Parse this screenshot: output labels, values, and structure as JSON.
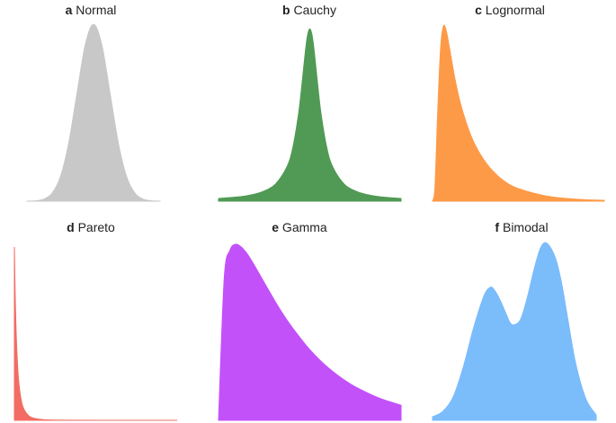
{
  "chart_data": [
    {
      "type": "area",
      "letter": "a",
      "title": "Normal",
      "color": "#c8c8c8",
      "x": [
        -4.0,
        -3.5,
        -3.0,
        -2.5,
        -2.0,
        -1.5,
        -1.0,
        -0.5,
        0.0,
        0.5,
        1.0,
        1.5,
        2.0,
        2.5,
        3.0,
        3.5,
        4.0
      ],
      "y": [
        0.0001,
        0.0009,
        0.0044,
        0.0175,
        0.054,
        0.1295,
        0.242,
        0.3521,
        0.3989,
        0.3521,
        0.242,
        0.1295,
        0.054,
        0.0175,
        0.0044,
        0.0009,
        0.0001
      ],
      "grid": false
    },
    {
      "type": "area",
      "letter": "b",
      "title": "Cauchy",
      "color": "#519a55",
      "x": [
        -8,
        -6,
        -5,
        -4,
        -3,
        -2,
        -1.5,
        -1,
        -0.7,
        -0.4,
        -0.2,
        0,
        0.2,
        0.4,
        0.7,
        1,
        1.5,
        2,
        3,
        4,
        5,
        6,
        8
      ],
      "y": [
        0.0049,
        0.0086,
        0.0122,
        0.0187,
        0.0318,
        0.0637,
        0.0979,
        0.1592,
        0.2136,
        0.2744,
        0.3061,
        0.3183,
        0.3061,
        0.2744,
        0.2136,
        0.1592,
        0.0979,
        0.0637,
        0.0318,
        0.0187,
        0.0122,
        0.0086,
        0.0049
      ],
      "grid": false
    },
    {
      "type": "area",
      "letter": "c",
      "title": "Lognormal",
      "color": "#fd9a48",
      "x": [
        0.02,
        0.1,
        0.2,
        0.3,
        0.4,
        0.5,
        0.6,
        0.8,
        1.0,
        1.3,
        1.6,
        2.0,
        2.5,
        3.0,
        4.0,
        5.0,
        6.0
      ],
      "y": [
        0.0,
        0.07,
        0.53,
        0.9,
        1.03,
        1.0,
        0.91,
        0.72,
        0.57,
        0.41,
        0.3,
        0.2,
        0.12,
        0.075,
        0.03,
        0.012,
        0.005
      ],
      "grid": false
    },
    {
      "type": "area",
      "letter": "d",
      "title": "Pareto",
      "color": "#f36c63",
      "x": [
        1.0,
        1.05,
        1.1,
        1.2,
        1.35,
        1.5,
        1.75,
        2.0,
        2.5,
        3.0,
        4.0,
        5.0,
        7.0,
        10.0,
        14.0,
        18.0
      ],
      "y": [
        3.0,
        2.47,
        2.05,
        1.45,
        0.9,
        0.59,
        0.32,
        0.19,
        0.077,
        0.037,
        0.012,
        0.0048,
        0.0012,
        0.0003,
        0.0001,
        0.0
      ],
      "grid": false
    },
    {
      "type": "area",
      "letter": "e",
      "title": "Gamma",
      "color": "#c351fa",
      "x": [
        0.0,
        0.25,
        0.5,
        0.75,
        1.0,
        1.25,
        1.5,
        2.0,
        2.5,
        3.0,
        3.5,
        4.0,
        4.5,
        5.0,
        5.5,
        6.0,
        7.0,
        8.0
      ],
      "y": [
        0.0,
        0.302,
        0.361,
        0.374,
        0.368,
        0.354,
        0.335,
        0.293,
        0.251,
        0.213,
        0.18,
        0.15,
        0.125,
        0.104,
        0.086,
        0.071,
        0.048,
        0.032
      ],
      "grid": false
    },
    {
      "type": "area",
      "letter": "f",
      "title": "Bimodal",
      "color": "#7bbcfb",
      "x": [
        -4,
        -3.5,
        -3,
        -2.5,
        -2,
        -1.5,
        -1.2,
        -1,
        -0.7,
        -0.4,
        -0.2,
        0,
        0.3,
        0.6,
        1,
        1.3,
        1.6,
        2,
        2.3,
        2.6,
        3,
        3.5,
        4
      ],
      "y": [
        0.02,
        0.05,
        0.13,
        0.3,
        0.52,
        0.7,
        0.75,
        0.74,
        0.68,
        0.6,
        0.55,
        0.54,
        0.57,
        0.68,
        0.87,
        0.98,
        1.0,
        0.92,
        0.78,
        0.58,
        0.32,
        0.12,
        0.03
      ],
      "grid": false
    }
  ]
}
